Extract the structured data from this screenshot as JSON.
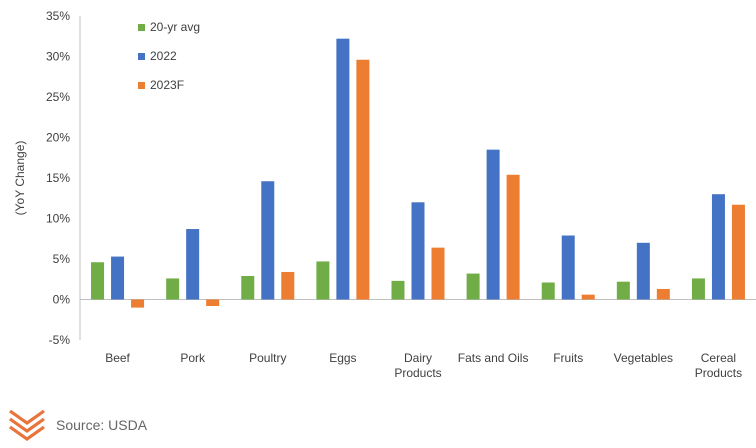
{
  "chart_data": {
    "type": "bar",
    "ylabel": "(YoY Change)",
    "ylim": [
      -5,
      35
    ],
    "yticks": [
      -5,
      0,
      5,
      10,
      15,
      20,
      25,
      30,
      35
    ],
    "ytick_labels": [
      "-5%",
      "0%",
      "5%",
      "10%",
      "15%",
      "20%",
      "25%",
      "30%",
      "35%"
    ],
    "categories": [
      [
        "Beef"
      ],
      [
        "Pork"
      ],
      [
        "Poultry"
      ],
      [
        "Eggs"
      ],
      [
        "Dairy",
        "Products"
      ],
      [
        "Fats and Oils"
      ],
      [
        "Fruits"
      ],
      [
        "Vegetables"
      ],
      [
        "Cereal",
        "Products"
      ]
    ],
    "series": [
      {
        "name": "20-yr avg",
        "color": "#70ad47",
        "values": [
          4.6,
          2.6,
          2.9,
          4.7,
          2.3,
          3.2,
          2.1,
          2.2,
          2.6
        ]
      },
      {
        "name": "2022",
        "color": "#4472c4",
        "values": [
          5.3,
          8.7,
          14.6,
          32.2,
          12.0,
          18.5,
          7.9,
          7.0,
          13.0
        ]
      },
      {
        "name": "2023F",
        "color": "#ed7d31",
        "values": [
          -1.0,
          -0.8,
          3.4,
          29.6,
          6.4,
          15.4,
          0.6,
          1.3,
          11.7
        ]
      }
    ],
    "legend_position": "top-left",
    "grid": false
  },
  "footer": {
    "source": "Source: USDA",
    "logo_color": "#e8743b",
    "logo_icon": "chevron-stack-logo-icon"
  }
}
